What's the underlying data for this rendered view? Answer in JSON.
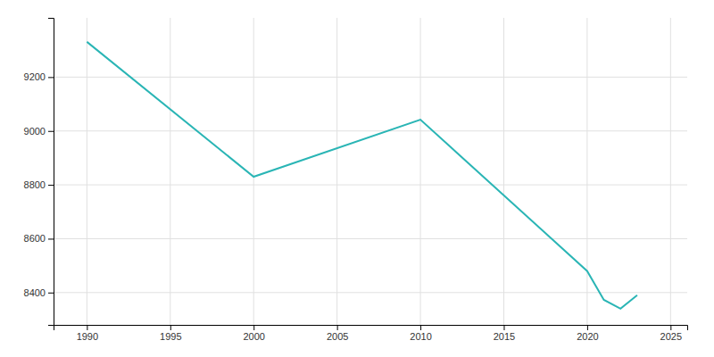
{
  "chart_data": {
    "type": "line",
    "x": [
      1990,
      2000,
      2010,
      2020,
      2021,
      2022,
      2023
    ],
    "values": [
      9331,
      8830,
      9042,
      8480,
      8373,
      8340,
      8390
    ],
    "color": "#2ab5b5",
    "xlim": [
      1988,
      2026
    ],
    "ylim": [
      8280,
      9420
    ],
    "xticks": [
      1990,
      1995,
      2000,
      2005,
      2010,
      2015,
      2020,
      2025
    ],
    "yticks": [
      8400,
      8600,
      8800,
      9000,
      9200
    ],
    "grid": true
  }
}
